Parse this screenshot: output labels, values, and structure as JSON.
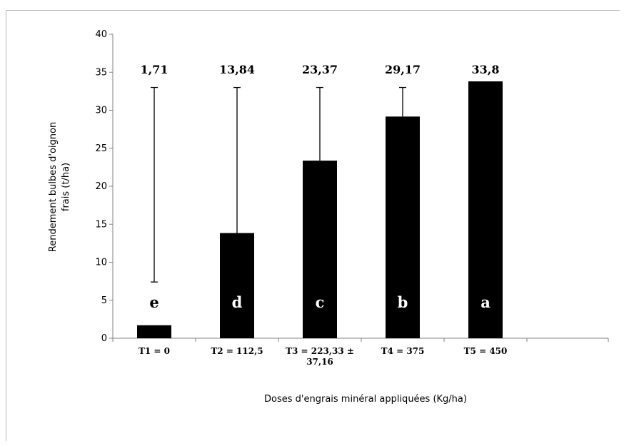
{
  "chart_data": {
    "type": "bar",
    "categories": [
      "T1 = 0",
      "T2 = 112,5",
      "T3 = 223,33 ± 37,16",
      "T4 = 375",
      "T5 = 450"
    ],
    "category_lines": [
      [
        "T1 = 0"
      ],
      [
        "T2 = 112,5"
      ],
      [
        "T3 = 223,33 ±",
        "37,16"
      ],
      [
        "T4 = 375"
      ],
      [
        "T5 = 450"
      ]
    ],
    "values": [
      1.71,
      13.84,
      23.37,
      29.17,
      33.8
    ],
    "value_labels": [
      "1,71",
      "13,84",
      "23,37",
      "29,17",
      "33,8"
    ],
    "error_upper": [
      33,
      33,
      33,
      33,
      null
    ],
    "error_lower": [
      7.4,
      null,
      null,
      null,
      null
    ],
    "letters": [
      "e",
      "d",
      "c",
      "b",
      "a"
    ],
    "xlabel": "Doses d'engrais minéral appliquées (Kg/ha)",
    "ylabel_lines": [
      "Rendement bulbes d'oignon",
      "frais (t/ha)"
    ],
    "ylim": [
      0,
      40
    ],
    "yticks": [
      0,
      5,
      10,
      15,
      20,
      25,
      30,
      35,
      40
    ],
    "bar_color": "#000000",
    "grid": false
  }
}
